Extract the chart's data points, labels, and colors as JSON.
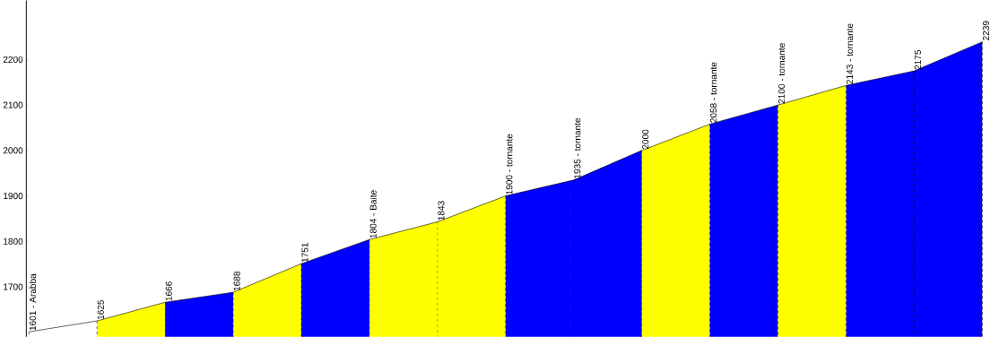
{
  "chart_data": {
    "type": "area",
    "categories": [
      null,
      null,
      null,
      null,
      null,
      null,
      null,
      null,
      null,
      null,
      null,
      null,
      null,
      null,
      null
    ],
    "series": [
      {
        "type": "line",
        "color": "#000000",
        "values": [
          1601,
          1625,
          1666,
          1688,
          1751,
          1804,
          1843,
          1900,
          1935,
          2000,
          2058,
          2100,
          2143,
          2175,
          2239
        ],
        "value_labels": [
          "1601 - Arabba",
          "1625",
          "1666",
          "1688",
          "1751",
          "1804 - Baite",
          "1843",
          "1900 - tornante",
          "1935 - tornante",
          "2000",
          "2058 - tornante",
          "2100 - tornante",
          "2143 - tornante",
          "2175",
          "2239"
        ]
      },
      {
        "color": "#ffff00",
        "values": [
          null,
          1625,
          1666,
          null,
          null,
          null,
          null,
          null,
          null,
          null,
          null,
          null,
          null,
          null,
          null
        ]
      },
      {
        "color": "#0000ff",
        "values": [
          null,
          null,
          1666,
          1688,
          null,
          null,
          null,
          null,
          null,
          null,
          null,
          null,
          null,
          null,
          null
        ]
      },
      {
        "color": "#ffff00",
        "values": [
          null,
          null,
          null,
          1688,
          1751,
          null,
          null,
          null,
          null,
          null,
          null,
          null,
          null,
          null,
          null
        ]
      },
      {
        "color": "#0000ff",
        "values": [
          null,
          null,
          null,
          null,
          1751,
          1804,
          null,
          null,
          null,
          null,
          null,
          null,
          null,
          null,
          null
        ]
      },
      {
        "color": "#ffff00",
        "values": [
          null,
          null,
          null,
          null,
          null,
          1804,
          1843,
          1900,
          null,
          null,
          null,
          null,
          null,
          null,
          null
        ]
      },
      {
        "color": "#0000ff",
        "values": [
          null,
          null,
          null,
          null,
          null,
          null,
          null,
          1900,
          1935,
          2000,
          null,
          null,
          null,
          null,
          null
        ]
      },
      {
        "color": "#ffff00",
        "values": [
          null,
          null,
          null,
          null,
          null,
          null,
          null,
          null,
          null,
          2000,
          2058,
          null,
          null,
          null,
          null
        ]
      },
      {
        "color": "#0000ff",
        "values": [
          null,
          null,
          null,
          null,
          null,
          null,
          null,
          null,
          null,
          null,
          2058,
          2100,
          null,
          null,
          null
        ]
      },
      {
        "color": "#ffff00",
        "values": [
          null,
          null,
          null,
          null,
          null,
          null,
          null,
          null,
          null,
          null,
          null,
          2100,
          2143,
          null,
          null
        ]
      },
      {
        "color": "#0000ff",
        "values": [
          null,
          null,
          null,
          null,
          null,
          null,
          null,
          null,
          null,
          null,
          null,
          null,
          2143,
          2175,
          2239
        ]
      }
    ],
    "grid": "x",
    "ylim": [
      1590,
      2330
    ],
    "yticks": [
      1700,
      1800,
      1900,
      2000,
      2100,
      2200
    ],
    "tick_labels": "y"
  }
}
